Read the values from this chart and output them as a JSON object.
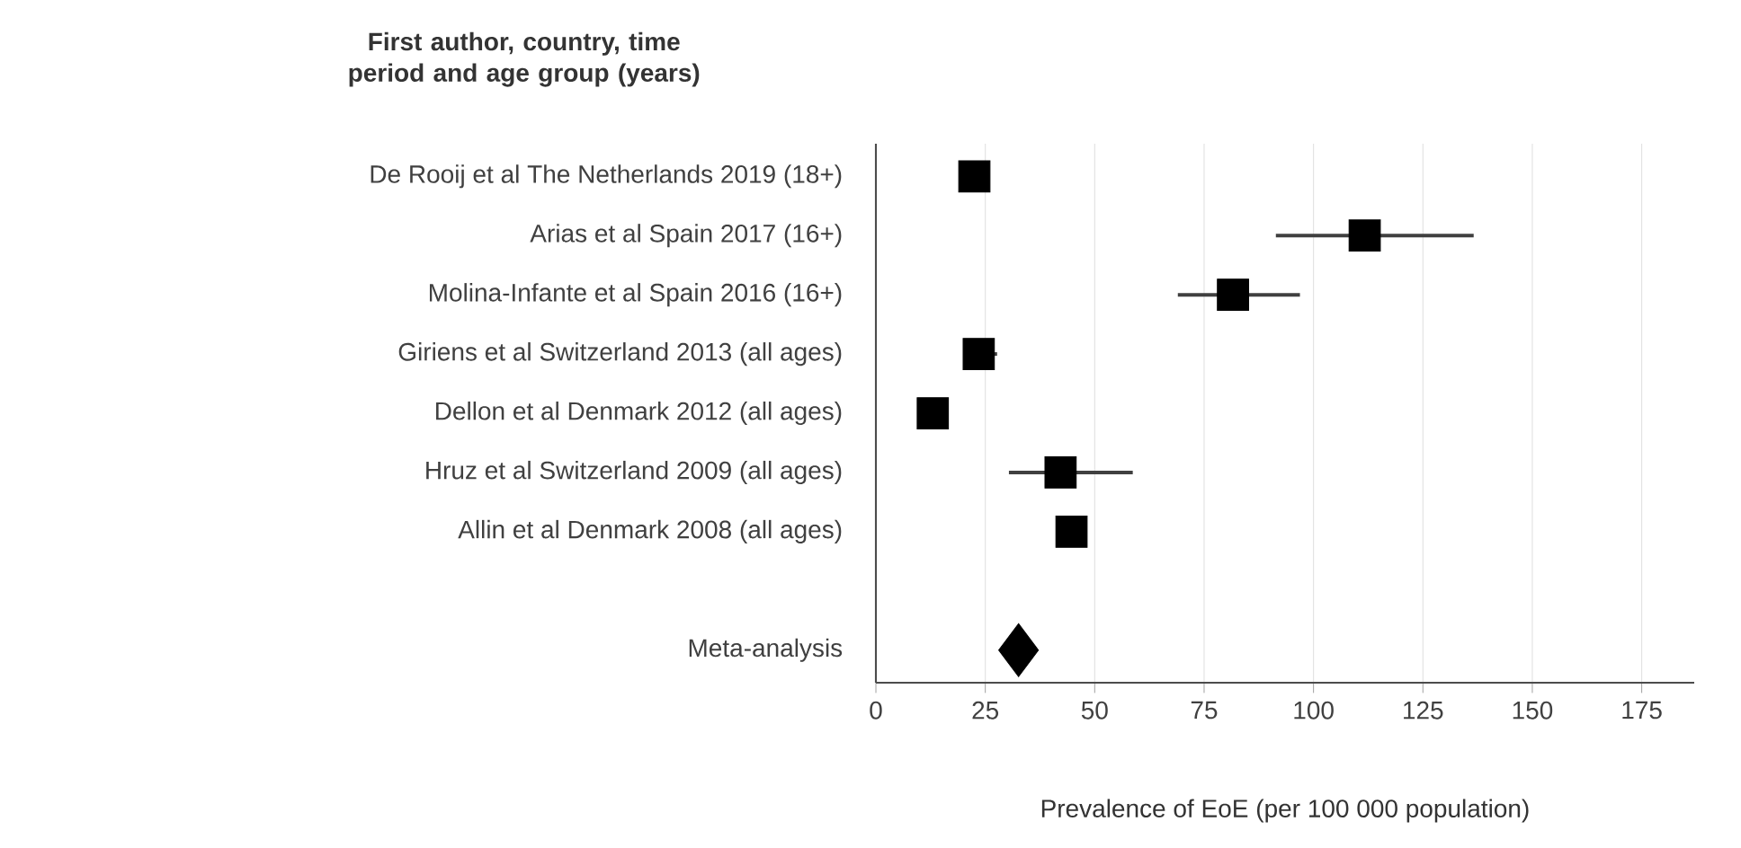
{
  "chart_data": {
    "type": "scatter",
    "orientation": "horizontal",
    "ylabel": "First author, country, time period and age group (years)",
    "xlabel": "Prevalence of EoE (per 100 000 population)",
    "categories": [
      "De  Rooij et al    The Netherlands    2019    (18+)",
      "Arias et al    Spain    2017    (16+)",
      "Molina-Infante et al    Spain    2016    (16+)",
      "Giriens et al    Switzerland    2013    (all ages)",
      "Dellon  et al    Denmark    2012    (all ages)",
      "Hruz et al    Switzerland    2009    (all ages)",
      "Allin et al    Denmark    2008    (all ages)",
      null,
      "Meta-analysis"
    ],
    "series": [
      {
        "color": "#000000",
        "marker": "square",
        "values": [
          22.5,
          111.7,
          81.6,
          23.5,
          13,
          42.2,
          44.7,
          null,
          null
        ],
        "errors": [
          null,
          [
            91.4,
            136.6
          ],
          [
            69,
            96.9
          ],
          [
            21,
            27.7
          ],
          null,
          [
            30.4,
            58.7
          ],
          null,
          null,
          null
        ]
      },
      {
        "color": "#000000",
        "marker": "diamond",
        "values": [
          null,
          null,
          null,
          null,
          null,
          null,
          null,
          null,
          32.6
        ]
      }
    ],
    "xlim": [
      0,
      187
    ],
    "xticks": [
      0,
      25,
      50,
      75,
      100,
      125,
      150,
      175
    ],
    "grid": "x"
  }
}
